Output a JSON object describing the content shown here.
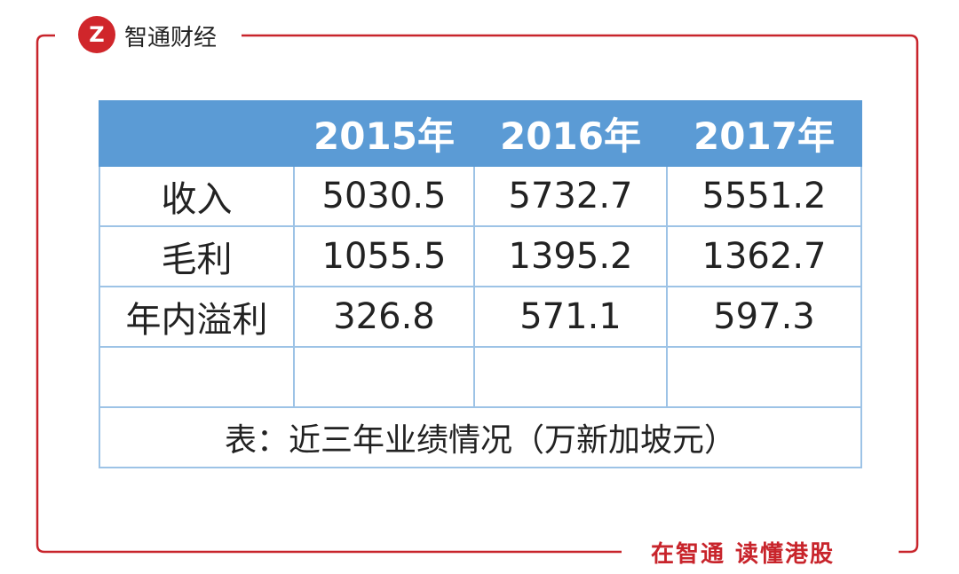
{
  "header": {
    "brand": "智通财经"
  },
  "table": {
    "columns": [
      "2015年",
      "2016年",
      "2017年"
    ],
    "rows": [
      [
        "收入",
        "5030.5",
        "5732.7",
        "5551.2"
      ],
      [
        "毛利",
        "1055.5",
        "1395.2",
        "1362.7"
      ],
      [
        "年内溢利",
        "326.8",
        "571.1",
        "597.3"
      ]
    ],
    "caption": "表：近三年业绩情况（万新加坡元）"
  },
  "footer": {
    "slogan": "在智通 读懂港股"
  }
}
